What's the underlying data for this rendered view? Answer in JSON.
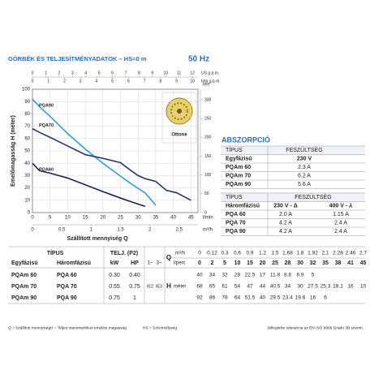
{
  "header": {
    "title": "GÖRBÉK ÉS TELJESÍTMÉNYADATOK – HS=0 m",
    "frequency": "50 Hz"
  },
  "chart_data": {
    "type": "line",
    "y_label": "Emelőmagasság H (méter)",
    "x_label": "Szállított mennyiség Q",
    "x_unit": "l/min",
    "y2_unit": "feet",
    "x": [
      0,
      2,
      5,
      10,
      15,
      20,
      25,
      28,
      30,
      32,
      35,
      38,
      41,
      45
    ],
    "xlim": [
      0,
      47
    ],
    "xticks": [
      0,
      5,
      10,
      15,
      20,
      25,
      30,
      35,
      40,
      45
    ],
    "ylim": [
      0,
      100
    ],
    "yticks": [
      0,
      10,
      20,
      30,
      40,
      50,
      60,
      70,
      80,
      90,
      100
    ],
    "y2lim": [
      0,
      328
    ],
    "y2ticks": [
      0,
      50,
      100,
      150,
      200,
      250,
      300
    ],
    "top_axes": [
      {
        "unit": "US g.p.m.",
        "lim": [
          0,
          12.42
        ],
        "ticks": [
          0,
          1,
          2,
          3,
          4,
          5,
          6,
          7,
          8,
          9,
          10,
          11,
          12
        ]
      },
      {
        "unit": "Imp g.p.m.",
        "lim": [
          0,
          10.34
        ],
        "ticks": [
          0,
          1,
          2,
          3,
          4,
          5,
          6,
          7,
          8,
          9,
          10
        ]
      }
    ],
    "bottom_axis2": {
      "unit": "m³/h",
      "lim": [
        0,
        2.82
      ],
      "ticks": [
        0,
        0.5,
        1,
        1.5,
        2,
        2.5
      ]
    },
    "grid": true,
    "inset_label": "Ottone",
    "series": [
      {
        "name": "PQA90",
        "color": "#2e9fd0",
        "values": [
          92,
          86,
          78,
          64,
          51.5,
          40,
          29.5,
          23.4,
          19.6,
          16,
          6,
          null,
          null,
          null
        ]
      },
      {
        "name": "PQA70",
        "color": "#27366f",
        "values": [
          68,
          65,
          61,
          54,
          47,
          44,
          40.5,
          34,
          30,
          27.5,
          25.3,
          18.1,
          16,
          10
        ]
      },
      {
        "name": "PQA60",
        "color": "#1c2450",
        "values": [
          40,
          34,
          32,
          28,
          22.5,
          17,
          11.8,
          8.8,
          6.9,
          5,
          null,
          null,
          null,
          null
        ]
      }
    ]
  },
  "performance_table": {
    "headers": {
      "type": "TÍPUS",
      "power": "TELJ. (P2)",
      "single": "Egyfázisú",
      "three": "Háromfázisú",
      "kw": "kW",
      "hp": "HP",
      "one_phase": "1~",
      "three_phase": "3~",
      "q": "Q",
      "m3h_unit": "m³/h",
      "lmin_unit": "l/perc",
      "h": "H",
      "h_unit": "méter"
    },
    "m3h": [
      "0",
      "0.12",
      "0.3",
      "0.6",
      "0.9",
      "1.2",
      "1.5",
      "1.68",
      "1.8",
      "1.92",
      "2.1",
      "2.28",
      "2.46",
      "2.7"
    ],
    "ie": [
      "IE2",
      "IE3"
    ],
    "rows": [
      {
        "single": "PQAm 60",
        "three": "PQA 60",
        "kw": "0.30",
        "hp": "0.40"
      },
      {
        "single": "PQAm 70",
        "three": "PQA 70",
        "kw": "0.55",
        "hp": "0.75"
      },
      {
        "single": "PQAm 90",
        "three": "PQA 90",
        "kw": "0.75",
        "hp": "1"
      }
    ]
  },
  "absorption": {
    "title": "ABSZORPCIÓ",
    "single": {
      "headers": [
        "TÍPUS",
        "FESZÜLTSÉG"
      ],
      "sub": [
        "Egyfázisú",
        "230 V"
      ],
      "rows": [
        [
          "PQAm 60",
          "2.3 A"
        ],
        [
          "PQAm 70",
          "6.2 A"
        ],
        [
          "PQAm 90",
          "5.6 A"
        ]
      ]
    },
    "three": {
      "headers": [
        "TÍPUS",
        "FESZÜLTSÉG"
      ],
      "sub": [
        "Háromfázisú",
        "230 V - Δ",
        "400 V - ⅄"
      ],
      "rows": [
        [
          "PQA 60",
          "2.0 A",
          "1.15 A"
        ],
        [
          "PQA 70",
          "4.2 A",
          "2.4 A"
        ],
        [
          "PQA 90",
          "4.2 A",
          "2.4 A"
        ]
      ]
    }
  },
  "footer": {
    "legend": [
      "Q = Szállított mennyiség",
      "H = Teljes manometrikus emelési magasság",
      "HS = Szívómélység"
    ],
    "note": "Jellegörbe tolerancia az EN ISO 9906 Grado 3B szerint."
  }
}
